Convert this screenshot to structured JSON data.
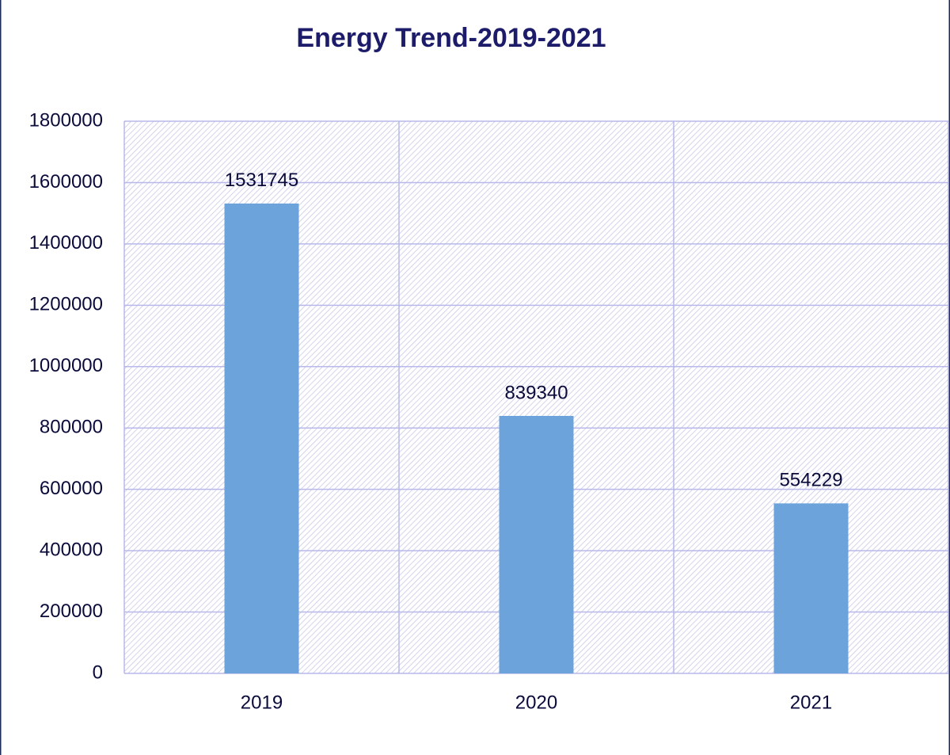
{
  "chart_data": {
    "type": "bar",
    "title": "Energy Trend-2019-2021",
    "categories": [
      "2019",
      "2020",
      "2021"
    ],
    "values": [
      1531745,
      839340,
      554229
    ],
    "color": "#6ca3da",
    "ylim": [
      0,
      1800000
    ],
    "yticks": [
      0,
      200000,
      400000,
      600000,
      800000,
      1000000,
      1200000,
      1400000,
      1600000,
      1800000
    ],
    "grid": true
  }
}
